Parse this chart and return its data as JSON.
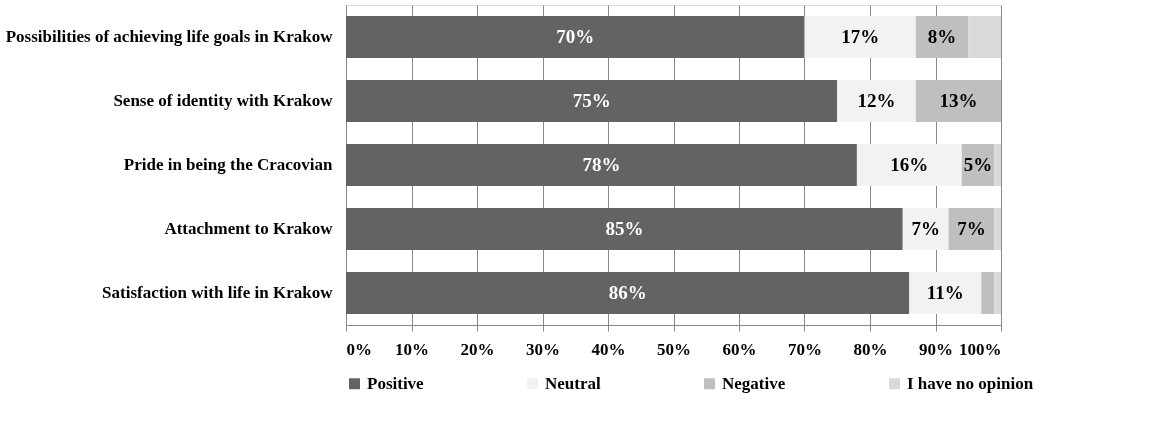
{
  "chart_data": {
    "type": "bar",
    "orientation": "horizontal",
    "stacked": true,
    "categories": [
      "Possibilities of achieving life goals in Krakow",
      "Sense of identity with Krakow",
      "Pride in being the Cracovian",
      "Attachment to Krakow",
      "Satisfaction with life in Krakow"
    ],
    "series": [
      {
        "name": "Positive",
        "color": "#636363",
        "values": [
          70,
          75,
          78,
          85,
          86
        ],
        "value_labels": [
          "70%",
          "75%",
          "78%",
          "85%",
          "86%"
        ]
      },
      {
        "name": "Neutral",
        "color": "#f2f2f2",
        "values": [
          17,
          12,
          16,
          7,
          11
        ],
        "value_labels": [
          "17%",
          "12%",
          "16%",
          "7%",
          "11%"
        ]
      },
      {
        "name": "Negative",
        "color": "#bfbfbf",
        "values": [
          8,
          13,
          5,
          7,
          2
        ],
        "value_labels": [
          "8%",
          "13%",
          "5%",
          "7%",
          null
        ]
      },
      {
        "name": "I have no opinion",
        "color": "#d9d9d9",
        "values": [
          5,
          0,
          1,
          1,
          1
        ],
        "value_labels": [
          null,
          null,
          null,
          null,
          null
        ]
      }
    ],
    "xlim": [
      0,
      100
    ],
    "xticks": [
      {
        "value": 0,
        "label": "0%"
      },
      {
        "value": 10,
        "label": "10%"
      },
      {
        "value": 20,
        "label": "20%"
      },
      {
        "value": 30,
        "label": "30%"
      },
      {
        "value": 40,
        "label": "40%"
      },
      {
        "value": 50,
        "label": "50%"
      },
      {
        "value": 60,
        "label": "60%"
      },
      {
        "value": 70,
        "label": "70%"
      },
      {
        "value": 80,
        "label": "80%"
      },
      {
        "value": 90,
        "label": "90%"
      },
      {
        "value": 100,
        "label": "100%"
      }
    ],
    "grid": "x",
    "legend": "bottom"
  }
}
